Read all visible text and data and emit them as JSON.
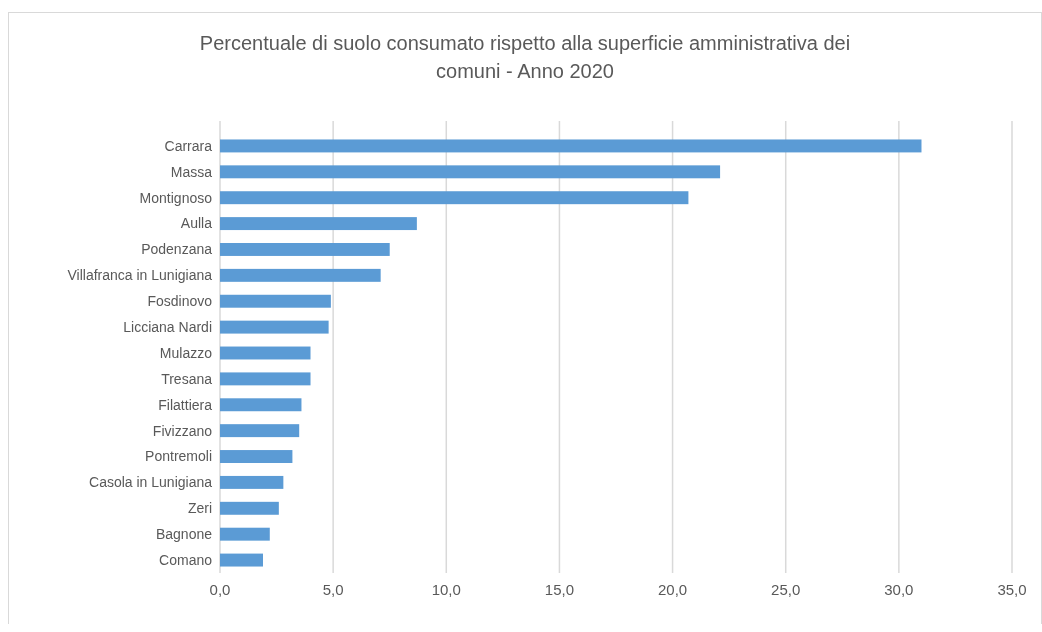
{
  "chart_data": {
    "type": "bar",
    "orientation": "horizontal",
    "title": "Percentuale di suolo consumato rispetto alla superficie amministrativa dei comuni - Anno 2020",
    "categories": [
      "Carrara",
      "Massa",
      "Montignoso",
      "Aulla",
      "Podenzana",
      "Villafranca in Lunigiana",
      "Fosdinovo",
      "Licciana Nardi",
      "Mulazzo",
      "Tresana",
      "Filattiera",
      "Fivizzano",
      "Pontremoli",
      "Casola in Lunigiana",
      "Zeri",
      "Bagnone",
      "Comano"
    ],
    "values": [
      31.0,
      22.1,
      20.7,
      8.7,
      7.5,
      7.1,
      4.9,
      4.8,
      4.0,
      4.0,
      3.6,
      3.5,
      3.2,
      2.8,
      2.6,
      2.2,
      1.9
    ],
    "color": "#5b9bd5",
    "xlim": [
      0,
      35
    ],
    "xticks": [
      {
        "value": 0,
        "label": "0,0"
      },
      {
        "value": 5,
        "label": "5,0"
      },
      {
        "value": 10,
        "label": "10,0"
      },
      {
        "value": 15,
        "label": "15,0"
      },
      {
        "value": 20,
        "label": "20,0"
      },
      {
        "value": 25,
        "label": "25,0"
      },
      {
        "value": 30,
        "label": "30,0"
      },
      {
        "value": 35,
        "label": "35,0"
      }
    ],
    "grid": "x"
  }
}
